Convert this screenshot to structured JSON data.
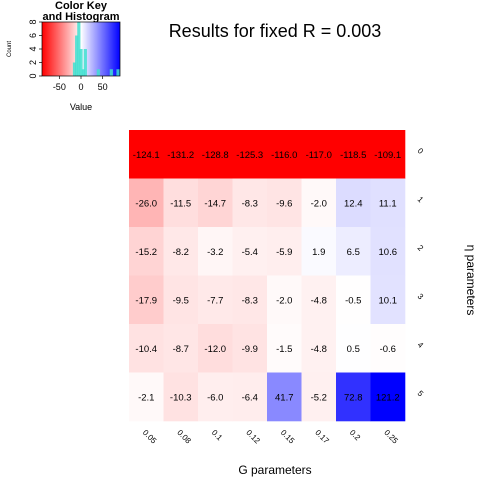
{
  "chart_data": [
    {
      "type": "heatmap",
      "title": "Results for fixed R = 0.003",
      "xlabel": "G parameters",
      "ylabel": "η parameters",
      "x_tick_labels": [
        "0.05",
        "0.08",
        "0.1",
        "0.12",
        "0.15",
        "0.17",
        "0.2",
        "0.25"
      ],
      "y_tick_labels": [
        "0",
        "1",
        "2",
        "3",
        "4",
        "5"
      ],
      "values": [
        [
          -124.1,
          -131.2,
          -128.8,
          -125.3,
          -116.0,
          -117.0,
          -118.5,
          -109.1
        ],
        [
          -26.0,
          -11.5,
          -14.7,
          -8.3,
          -9.6,
          -2.0,
          12.4,
          11.1
        ],
        [
          -15.2,
          -8.2,
          -3.2,
          -5.4,
          -5.9,
          1.9,
          6.5,
          10.6
        ],
        [
          -17.9,
          -9.5,
          -7.7,
          -8.3,
          -2.0,
          -4.8,
          -0.5,
          10.1
        ],
        [
          -10.4,
          -8.7,
          -12.0,
          -9.9,
          -1.5,
          -4.8,
          0.5,
          -0.6
        ],
        [
          -2.1,
          -10.3,
          -6.0,
          -6.4,
          41.7,
          -5.2,
          72.8,
          121.2
        ]
      ],
      "color_scale": {
        "low": "#ff0000",
        "mid": "#ffffff",
        "high": "#0000ff",
        "vmin": -90,
        "vmax": 90
      }
    },
    {
      "type": "bar",
      "title": "Color Key and Histogram",
      "title_lines": [
        "Color Key",
        "and Histogram"
      ],
      "xlabel": "Value",
      "ylabel": "Count",
      "x_tick_labels": [
        "-50",
        "0",
        "50"
      ],
      "y_tick_labels": [
        "0",
        "2",
        "4",
        "6",
        "8"
      ],
      "xlim": [
        -90,
        90
      ],
      "ylim": [
        0,
        8
      ],
      "bins": [
        {
          "x": -15,
          "count": 2
        },
        {
          "x": -10,
          "count": 6
        },
        {
          "x": -5,
          "count": 8
        },
        {
          "x": 0,
          "count": 4
        },
        {
          "x": 5,
          "count": 1
        },
        {
          "x": 10,
          "count": 4
        },
        {
          "x": 40,
          "count": 1
        },
        {
          "x": 70,
          "count": 1
        },
        {
          "x": 120,
          "count": 1
        }
      ],
      "bar_color": "#3fe0d0"
    }
  ]
}
